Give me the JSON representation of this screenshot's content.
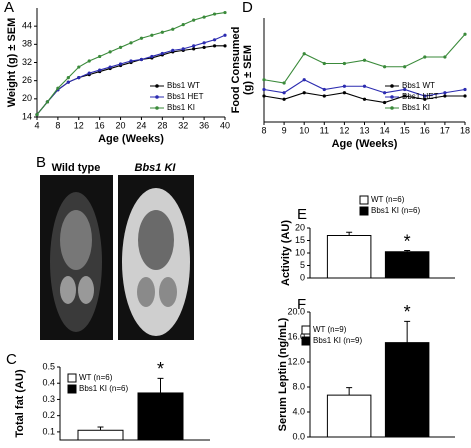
{
  "image_panel": {
    "panel": "B",
    "labels": [
      "Wild type",
      "Bbs1 KI"
    ]
  },
  "chart_data": [
    {
      "type": "line",
      "panel": "A",
      "y_label": "Weight (g) ± SEM",
      "x_label": "Age (Weeks)",
      "x": [
        4,
        6,
        8,
        10,
        12,
        14,
        16,
        18,
        20,
        22,
        24,
        26,
        28,
        30,
        32,
        34,
        36,
        38,
        40
      ],
      "series": [
        {
          "name": "Bbs1 WT",
          "color": "#000000",
          "values": [
            14.8,
            19,
            23,
            25.5,
            27,
            28,
            29,
            30,
            31,
            32,
            33,
            33.5,
            34.5,
            35.5,
            36,
            36.5,
            37,
            37.5,
            37.5
          ]
        },
        {
          "name": "Bbs1 HET",
          "color": "#2b2bb0",
          "values": [
            14.8,
            19,
            23,
            25.5,
            27,
            28.5,
            29.5,
            30.5,
            31.5,
            32.5,
            33,
            34,
            35,
            36,
            36.5,
            37.5,
            38.5,
            39.5,
            41
          ]
        },
        {
          "name": "Bbs1 KI",
          "color": "#3a8a3a",
          "values": [
            14.8,
            19,
            23.5,
            27,
            30.5,
            32.5,
            34,
            35.5,
            37,
            38.5,
            40,
            41,
            42,
            43,
            44.5,
            46,
            47,
            48,
            48.5
          ]
        }
      ],
      "xlim": [
        4,
        40
      ],
      "xticks": [
        4,
        8,
        12,
        16,
        20,
        24,
        28,
        32,
        36,
        40
      ],
      "ylim": [
        14,
        50
      ],
      "yticks": [
        14,
        20,
        26,
        32,
        38,
        44
      ]
    },
    {
      "type": "line",
      "panel": "D",
      "y_label": [
        "Food Consumed",
        "(g) ± SEM"
      ],
      "x_label": "Age (Weeks)",
      "x": [
        8,
        9,
        10,
        11,
        12,
        13,
        14,
        15,
        16,
        17,
        18
      ],
      "series": [
        {
          "name": "Bbs1 WT",
          "color": "#000000",
          "values": [
            3.8,
            3.7,
            3.9,
            3.8,
            3.9,
            3.7,
            3.6,
            3.8,
            3.7,
            3.8,
            3.8
          ]
        },
        {
          "name": "Bbs1 HET",
          "color": "#2b2bb0",
          "values": [
            4.0,
            3.9,
            4.3,
            4.0,
            4.1,
            4.1,
            3.9,
            4.0,
            3.8,
            3.9,
            4.0
          ]
        },
        {
          "name": "Bbs1 KI",
          "color": "#3a8a3a",
          "values": [
            4.3,
            4.2,
            5.1,
            4.8,
            4.8,
            4.9,
            4.7,
            4.7,
            5.0,
            5.0,
            5.7
          ]
        }
      ],
      "xlim": [
        8,
        18
      ],
      "xticks": [
        8,
        9,
        10,
        11,
        12,
        13,
        14,
        15,
        16,
        17,
        18
      ],
      "ylim": [
        3,
        6.2
      ]
    },
    {
      "type": "bar",
      "panel": "C",
      "y_label": "Total fat (AU)",
      "annotation": "*",
      "series": [
        {
          "name": "WT (n=6)",
          "color": "#ffffff",
          "values": [
            0.11
          ],
          "errors": [
            0.02
          ]
        },
        {
          "name": "Bbs1 KI (n=6)",
          "color": "#000000",
          "values": [
            0.34
          ],
          "errors": [
            0.09
          ]
        }
      ],
      "ylim": [
        0.05,
        0.5
      ],
      "yticks": [
        0.1,
        0.2,
        0.3,
        0.4,
        0.5
      ]
    },
    {
      "type": "bar",
      "panel": "E",
      "y_label": "Activity (AU)",
      "annotation": "*",
      "series": [
        {
          "name": "WT (n=6)",
          "color": "#ffffff",
          "values": [
            17
          ],
          "errors": [
            1.3
          ]
        },
        {
          "name": "Bbs1 KI (n=6)",
          "color": "#000000",
          "values": [
            10.5
          ],
          "errors": [
            0.5
          ]
        }
      ],
      "ylim": [
        0,
        20
      ],
      "yticks": [
        0,
        5,
        10,
        15,
        20
      ]
    },
    {
      "type": "bar",
      "panel": "F",
      "y_label": "Serum Leptin (ng/mL)",
      "annotation": "*",
      "series": [
        {
          "name": "WT (n=9)",
          "color": "#ffffff",
          "values": [
            6.7
          ],
          "errors": [
            1.2
          ]
        },
        {
          "name": "Bbs1 KI (n=9)",
          "color": "#000000",
          "values": [
            15.1
          ],
          "errors": [
            3.4
          ]
        }
      ],
      "ylim": [
        0,
        20
      ],
      "yticks": [
        {
          "value": 0,
          "label": "0.0"
        },
        {
          "value": 4,
          "label": "4.0"
        },
        {
          "value": 8,
          "label": "8.0"
        },
        {
          "value": 12,
          "label": "12.0"
        },
        {
          "value": 16,
          "label": "16.0"
        },
        {
          "value": 20,
          "label": "20.0"
        }
      ]
    }
  ]
}
